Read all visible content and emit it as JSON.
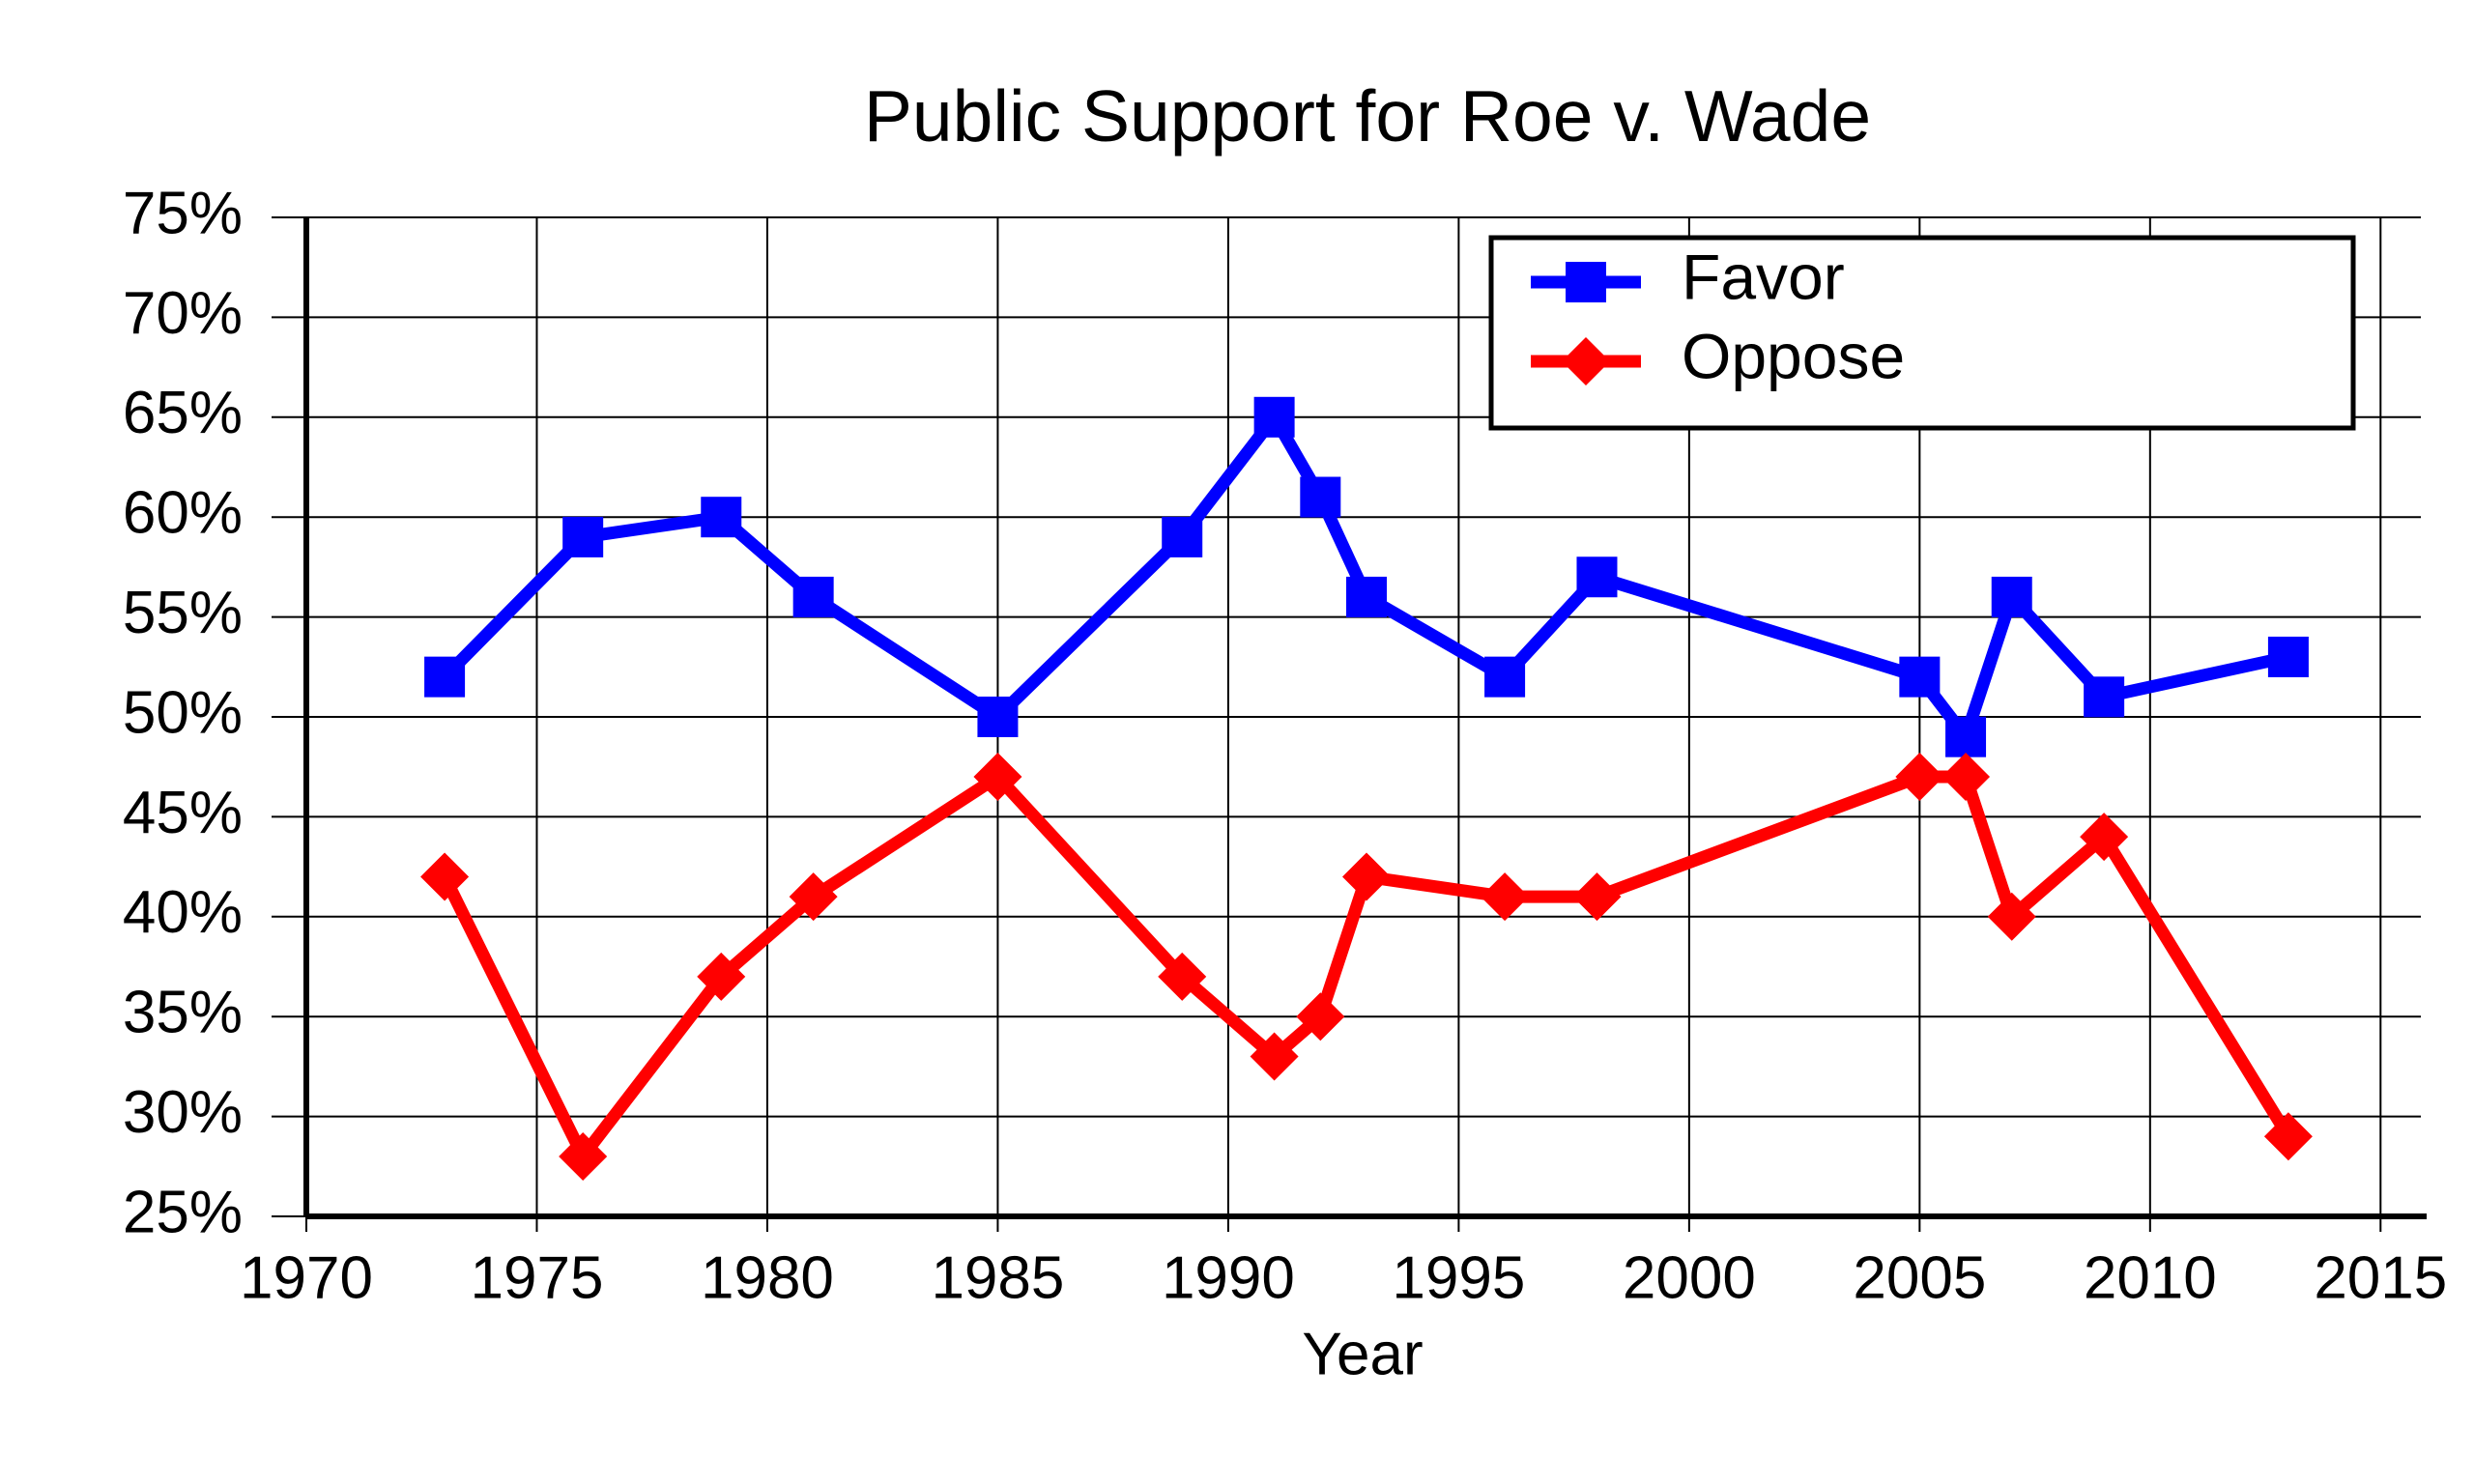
{
  "chart_data": {
    "type": "line",
    "title": "Public Support for Roe v. Wade",
    "x_label": "Year",
    "x": [
      1973,
      1976,
      1979,
      1981,
      1985,
      1989,
      1991,
      1992,
      1993,
      1996,
      1998,
      2005,
      2006,
      2007,
      2009,
      2013
    ],
    "series": [
      {
        "name": "Favor",
        "color": "#0000ff",
        "marker": "square",
        "values": [
          52,
          59,
          60,
          56,
          50,
          59,
          65,
          61,
          56,
          52,
          57,
          52,
          49,
          56,
          51,
          53
        ]
      },
      {
        "name": "Oppose",
        "color": "#ff0000",
        "marker": "diamond",
        "values": [
          42,
          28,
          37,
          41,
          47,
          37,
          33,
          35,
          42,
          41,
          41,
          47,
          47,
          40,
          44,
          29
        ]
      }
    ],
    "xlim": [
      1970,
      2016
    ],
    "xticks": [
      1970,
      1975,
      1980,
      1985,
      1990,
      1995,
      2000,
      2005,
      2010,
      2015
    ],
    "ylim": [
      25,
      75
    ],
    "yticks": [
      {
        "value": 25,
        "label": "25%"
      },
      {
        "value": 30,
        "label": "30%"
      },
      {
        "value": 35,
        "label": "35%"
      },
      {
        "value": 40,
        "label": "40%"
      },
      {
        "value": 45,
        "label": "45%"
      },
      {
        "value": 50,
        "label": "50%"
      },
      {
        "value": 55,
        "label": "55%"
      },
      {
        "value": 60,
        "label": "60%"
      },
      {
        "value": 65,
        "label": "65%"
      },
      {
        "value": 70,
        "label": "70%"
      },
      {
        "value": 75,
        "label": "75%"
      }
    ],
    "grid": true,
    "legend": "upper right"
  }
}
